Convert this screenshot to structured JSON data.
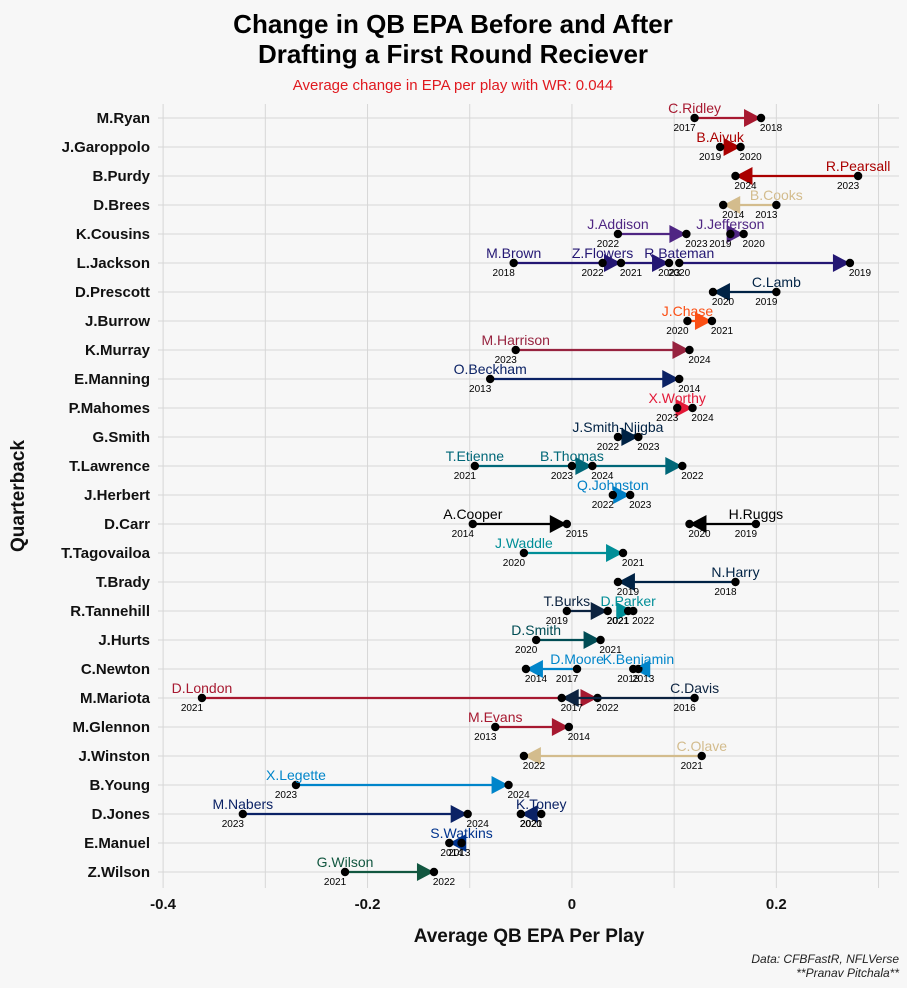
{
  "chart_data": {
    "type": "arrow-dot",
    "title_lines": [
      "Change in QB EPA Before and After",
      "Drafting a First Round Reciever"
    ],
    "subtitle": "Average change in EPA per play with WR: 0.044",
    "xlabel": "Average QB EPA Per Play",
    "ylabel": "Quarterback",
    "xlim": [
      -0.405,
      0.32
    ],
    "xticks": [
      -0.4,
      -0.2,
      0.0,
      0.2
    ],
    "xtick_labels": [
      "-0.4",
      "-0.2",
      "0",
      "0.2"
    ],
    "grid": true,
    "caption_lines": [
      "Data: CFBFastR, NFLVerse",
      "**Pranav Pitchala**"
    ],
    "quarterbacks": [
      "M.Ryan",
      "J.Garoppolo",
      "B.Purdy",
      "D.Brees",
      "K.Cousins",
      "L.Jackson",
      "D.Prescott",
      "J.Burrow",
      "K.Murray",
      "E.Manning",
      "P.Mahomes",
      "G.Smith",
      "T.Lawrence",
      "J.Herbert",
      "D.Carr",
      "T.Tagovailoa",
      "T.Brady",
      "R.Tannehill",
      "J.Hurts",
      "C.Newton",
      "M.Mariota",
      "M.Glennon",
      "J.Winston",
      "B.Young",
      "D.Jones",
      "E.Manuel",
      "Z.Wilson"
    ],
    "arrows": [
      {
        "qb": "M.Ryan",
        "wr": "C.Ridley",
        "from": 0.12,
        "to": 0.185,
        "from_year": "2017",
        "to_year": "2018",
        "color": "#a71930"
      },
      {
        "qb": "J.Garoppolo",
        "wr": "B.Aiyuk",
        "from": 0.145,
        "to": 0.165,
        "from_year": "2019",
        "to_year": "2020",
        "color": "#aa0000"
      },
      {
        "qb": "B.Purdy",
        "wr": "R.Pearsall",
        "from": 0.28,
        "to": 0.16,
        "from_year": "2023",
        "to_year": "2024",
        "color": "#aa0000"
      },
      {
        "qb": "D.Brees",
        "wr": "B.Cooks",
        "from": 0.2,
        "to": 0.148,
        "from_year": "2013",
        "to_year": "2014",
        "color": "#d3bc8d"
      },
      {
        "qb": "K.Cousins",
        "wr": "J.Addison",
        "from": 0.045,
        "to": 0.112,
        "from_year": "2022",
        "to_year": "2023",
        "color": "#4f2683"
      },
      {
        "qb": "K.Cousins",
        "wr": "J.Jefferson",
        "from": 0.155,
        "to": 0.168,
        "from_year": "2019",
        "to_year": "2020",
        "color": "#4f2683"
      },
      {
        "qb": "L.Jackson",
        "wr": "M.Brown",
        "from": -0.057,
        "to": 0.095,
        "from_year": "2018",
        "to_year": "2020",
        "color": "#241773"
      },
      {
        "qb": "L.Jackson",
        "wr": "Z.Flowers",
        "from": 0.03,
        "to": 0.048,
        "from_year": "2022",
        "to_year": "2021",
        "color": "#241773"
      },
      {
        "qb": "L.Jackson",
        "wr": "R.Bateman",
        "from": 0.105,
        "to": 0.272,
        "from_year": "2023",
        "to_year": "2019",
        "color": "#241773"
      },
      {
        "qb": "D.Prescott",
        "wr": "C.Lamb",
        "from": 0.2,
        "to": 0.138,
        "from_year": "2019",
        "to_year": "2020",
        "color": "#002244"
      },
      {
        "qb": "J.Burrow",
        "wr": "J.Chase",
        "from": 0.113,
        "to": 0.137,
        "from_year": "2020",
        "to_year": "2021",
        "color": "#fb4f14"
      },
      {
        "qb": "K.Murray",
        "wr": "M.Harrison",
        "from": -0.055,
        "to": 0.115,
        "from_year": "2023",
        "to_year": "2024",
        "color": "#97233f"
      },
      {
        "qb": "E.Manning",
        "wr": "O.Beckham",
        "from": -0.08,
        "to": 0.105,
        "from_year": "2013",
        "to_year": "2014",
        "color": "#0b2265"
      },
      {
        "qb": "P.Mahomes",
        "wr": "X.Worthy",
        "from": 0.103,
        "to": 0.118,
        "from_year": "2023",
        "to_year": "2024",
        "color": "#e31837"
      },
      {
        "qb": "G.Smith",
        "wr": "J.Smith-Njigba",
        "from": 0.045,
        "to": 0.065,
        "from_year": "2022",
        "to_year": "2023",
        "color": "#002244"
      },
      {
        "qb": "T.Lawrence",
        "wr": "T.Etienne",
        "from": -0.095,
        "to": 0.108,
        "from_year": "2021",
        "to_year": "2022",
        "color": "#006778"
      },
      {
        "qb": "T.Lawrence",
        "wr": "B.Thomas",
        "from": 0.0,
        "to": 0.02,
        "from_year": "2023",
        "to_year": "2024",
        "color": "#006778"
      },
      {
        "qb": "J.Herbert",
        "wr": "Q.Johnston",
        "from": 0.04,
        "to": 0.057,
        "from_year": "2022",
        "to_year": "2023",
        "color": "#0080c6"
      },
      {
        "qb": "D.Carr",
        "wr": "A.Cooper",
        "from": -0.097,
        "to": -0.005,
        "from_year": "2014",
        "to_year": "2015",
        "color": "#000000"
      },
      {
        "qb": "D.Carr",
        "wr": "H.Ruggs",
        "from": 0.18,
        "to": 0.115,
        "from_year": "2019",
        "to_year": "2020",
        "color": "#000000"
      },
      {
        "qb": "T.Tagovailoa",
        "wr": "J.Waddle",
        "from": -0.047,
        "to": 0.05,
        "from_year": "2020",
        "to_year": "2021",
        "color": "#008e97"
      },
      {
        "qb": "T.Brady",
        "wr": "N.Harry",
        "from": 0.16,
        "to": 0.045,
        "from_year": "2018",
        "to_year": "2019",
        "color": "#002244"
      },
      {
        "qb": "R.Tannehill",
        "wr": "T.Burks",
        "from": -0.005,
        "to": 0.035,
        "from_year": "2019",
        "to_year": "2021",
        "color": "#0c2340"
      },
      {
        "qb": "R.Tannehill",
        "wr": "D.Parker",
        "from": 0.055,
        "to": 0.06,
        "from_year": "2021",
        "to_year": "2022",
        "color": "#008e97"
      },
      {
        "qb": "J.Hurts",
        "wr": "D.Smith",
        "from": -0.035,
        "to": 0.028,
        "from_year": "2020",
        "to_year": "2021",
        "color": "#004c54"
      },
      {
        "qb": "C.Newton",
        "wr": "D.Moore",
        "from": 0.005,
        "to": -0.045,
        "from_year": "2017",
        "to_year": "2014",
        "color": "#0085ca"
      },
      {
        "qb": "C.Newton",
        "wr": "K.Benjamin",
        "from": 0.065,
        "to": 0.06,
        "from_year": "2018",
        "to_year": "2013",
        "color": "#0085ca"
      },
      {
        "qb": "M.Mariota",
        "wr": "D.London",
        "from": -0.362,
        "to": 0.025,
        "from_year": "2021",
        "to_year": "2022",
        "color": "#a71930"
      },
      {
        "qb": "M.Mariota",
        "wr": "C.Davis",
        "from": 0.12,
        "to": -0.01,
        "from_year": "2016",
        "to_year": "2017",
        "color": "#0c2340"
      },
      {
        "qb": "M.Glennon",
        "wr": "M.Evans",
        "from": -0.075,
        "to": -0.003,
        "from_year": "2013",
        "to_year": "2014",
        "color": "#a71930"
      },
      {
        "qb": "J.Winston",
        "wr": "C.Olave",
        "from": 0.127,
        "to": -0.047,
        "from_year": "2021",
        "to_year": "2022",
        "color": "#d3bc8d"
      },
      {
        "qb": "B.Young",
        "wr": "X.Legette",
        "from": -0.27,
        "to": -0.062,
        "from_year": "2023",
        "to_year": "2024",
        "color": "#0085ca"
      },
      {
        "qb": "D.Jones",
        "wr": "M.Nabers",
        "from": -0.322,
        "to": -0.102,
        "from_year": "2023",
        "to_year": "2024",
        "color": "#0b2265"
      },
      {
        "qb": "D.Jones",
        "wr": "K.Toney",
        "from": -0.03,
        "to": -0.05,
        "from_year": "2021",
        "to_year": "2020",
        "color": "#0b2265"
      },
      {
        "qb": "E.Manuel",
        "wr": "S.Watkins",
        "from": -0.108,
        "to": -0.12,
        "from_year": "2014",
        "to_year": "2013",
        "color": "#00338d"
      },
      {
        "qb": "Z.Wilson",
        "wr": "G.Wilson",
        "from": -0.222,
        "to": -0.135,
        "from_year": "2021",
        "to_year": "2022",
        "color": "#125740"
      }
    ]
  }
}
